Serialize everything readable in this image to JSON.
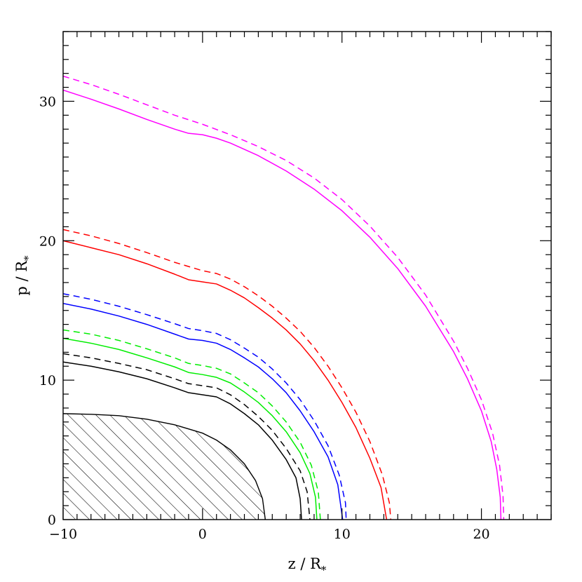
{
  "chart_data": {
    "type": "line",
    "title": "",
    "xlabel": {
      "main": "z / R",
      "sub": "*"
    },
    "ylabel": {
      "main": "p / R",
      "sub": "*"
    },
    "xlim": [
      -10,
      25
    ],
    "ylim": [
      0,
      35
    ],
    "xticks": [
      -10,
      0,
      10,
      20
    ],
    "yticks": [
      0,
      10,
      20,
      30
    ],
    "xtick_labels": [
      "−10",
      "0",
      "10",
      "20"
    ],
    "ytick_labels": [
      "0",
      "10",
      "20",
      "30"
    ],
    "x_minor_step": 1,
    "y_minor_step": 1,
    "grid": false,
    "legend": "none",
    "hatched_region": {
      "name": "stellar-core-region",
      "color": "#000000",
      "points": [
        [
          -10,
          7.6
        ],
        [
          -8,
          7.55
        ],
        [
          -6,
          7.45
        ],
        [
          -4,
          7.2
        ],
        [
          -2,
          6.8
        ],
        [
          0,
          6.2
        ],
        [
          1,
          5.7
        ],
        [
          2,
          5.0
        ],
        [
          3,
          4.0
        ],
        [
          3.8,
          2.8
        ],
        [
          4.3,
          1.5
        ],
        [
          4.5,
          0
        ]
      ]
    },
    "series": [
      {
        "color": "#000000",
        "dashed": false,
        "points": [
          [
            -10,
            11.3
          ],
          [
            -8,
            11.0
          ],
          [
            -6,
            10.6
          ],
          [
            -4,
            10.1
          ],
          [
            -2,
            9.45
          ],
          [
            -1,
            9.1
          ],
          [
            0,
            8.95
          ],
          [
            1,
            8.8
          ],
          [
            2,
            8.3
          ],
          [
            3,
            7.6
          ],
          [
            4,
            6.8
          ],
          [
            5,
            5.7
          ],
          [
            6,
            4.3
          ],
          [
            6.7,
            3.0
          ],
          [
            7.0,
            1.5
          ],
          [
            7.1,
            0
          ]
        ]
      },
      {
        "color": "#000000",
        "dashed": true,
        "points": [
          [
            -10,
            11.9
          ],
          [
            -8,
            11.6
          ],
          [
            -6,
            11.2
          ],
          [
            -4,
            10.75
          ],
          [
            -2,
            10.1
          ],
          [
            -1,
            9.75
          ],
          [
            0,
            9.6
          ],
          [
            1,
            9.45
          ],
          [
            2,
            8.95
          ],
          [
            3,
            8.25
          ],
          [
            4,
            7.4
          ],
          [
            5,
            6.4
          ],
          [
            6,
            5.1
          ],
          [
            7,
            3.5
          ],
          [
            7.5,
            2.0
          ],
          [
            7.7,
            0
          ]
        ]
      },
      {
        "color": "#00ee00",
        "dashed": false,
        "points": [
          [
            -10,
            13.0
          ],
          [
            -8,
            12.65
          ],
          [
            -6,
            12.2
          ],
          [
            -4,
            11.6
          ],
          [
            -2,
            10.95
          ],
          [
            -1,
            10.55
          ],
          [
            0,
            10.4
          ],
          [
            1,
            10.2
          ],
          [
            2,
            9.8
          ],
          [
            3,
            9.15
          ],
          [
            4,
            8.4
          ],
          [
            5,
            7.45
          ],
          [
            6,
            6.3
          ],
          [
            7,
            4.8
          ],
          [
            7.7,
            3.3
          ],
          [
            8.1,
            1.6
          ],
          [
            8.2,
            0
          ]
        ]
      },
      {
        "color": "#00ee00",
        "dashed": true,
        "points": [
          [
            -10,
            13.6
          ],
          [
            -8,
            13.3
          ],
          [
            -6,
            12.85
          ],
          [
            -4,
            12.25
          ],
          [
            -2,
            11.6
          ],
          [
            -1,
            11.2
          ],
          [
            0,
            11.05
          ],
          [
            1,
            10.85
          ],
          [
            2,
            10.45
          ],
          [
            3,
            9.8
          ],
          [
            4,
            9.1
          ],
          [
            5,
            8.15
          ],
          [
            6,
            7.0
          ],
          [
            7,
            5.55
          ],
          [
            7.8,
            3.9
          ],
          [
            8.3,
            2.0
          ],
          [
            8.45,
            0
          ]
        ]
      },
      {
        "color": "#0000ff",
        "dashed": false,
        "points": [
          [
            -10,
            15.5
          ],
          [
            -8,
            15.1
          ],
          [
            -6,
            14.6
          ],
          [
            -4,
            14.0
          ],
          [
            -2,
            13.3
          ],
          [
            -1,
            12.95
          ],
          [
            0,
            12.85
          ],
          [
            1,
            12.65
          ],
          [
            2,
            12.2
          ],
          [
            3,
            11.6
          ],
          [
            4,
            10.95
          ],
          [
            5,
            10.1
          ],
          [
            6,
            9.1
          ],
          [
            7,
            7.8
          ],
          [
            8,
            6.3
          ],
          [
            9,
            4.5
          ],
          [
            9.7,
            2.5
          ],
          [
            10.05,
            0
          ]
        ]
      },
      {
        "color": "#0000ff",
        "dashed": true,
        "points": [
          [
            -10,
            16.2
          ],
          [
            -8,
            15.8
          ],
          [
            -6,
            15.3
          ],
          [
            -4,
            14.7
          ],
          [
            -2,
            14.05
          ],
          [
            -1,
            13.7
          ],
          [
            0,
            13.55
          ],
          [
            1,
            13.35
          ],
          [
            2,
            12.9
          ],
          [
            3,
            12.3
          ],
          [
            4,
            11.65
          ],
          [
            5,
            10.8
          ],
          [
            6,
            9.8
          ],
          [
            7,
            8.6
          ],
          [
            8,
            7.1
          ],
          [
            9,
            5.3
          ],
          [
            9.8,
            3.2
          ],
          [
            10.25,
            1.2
          ],
          [
            10.3,
            0
          ]
        ]
      },
      {
        "color": "#ff0000",
        "dashed": false,
        "points": [
          [
            -10,
            20.0
          ],
          [
            -8,
            19.5
          ],
          [
            -6,
            19.0
          ],
          [
            -4,
            18.35
          ],
          [
            -2,
            17.6
          ],
          [
            -1,
            17.2
          ],
          [
            0,
            17.05
          ],
          [
            1,
            16.9
          ],
          [
            2,
            16.45
          ],
          [
            3,
            15.9
          ],
          [
            4,
            15.2
          ],
          [
            5,
            14.45
          ],
          [
            6,
            13.6
          ],
          [
            7,
            12.6
          ],
          [
            8,
            11.4
          ],
          [
            9,
            10.0
          ],
          [
            10,
            8.4
          ],
          [
            11,
            6.6
          ],
          [
            12,
            4.4
          ],
          [
            12.8,
            2.3
          ],
          [
            13.2,
            0
          ]
        ]
      },
      {
        "color": "#ff0000",
        "dashed": true,
        "points": [
          [
            -10,
            20.8
          ],
          [
            -8,
            20.35
          ],
          [
            -6,
            19.8
          ],
          [
            -4,
            19.15
          ],
          [
            -2,
            18.45
          ],
          [
            0,
            17.85
          ],
          [
            1,
            17.65
          ],
          [
            2,
            17.25
          ],
          [
            3,
            16.7
          ],
          [
            4,
            16.05
          ],
          [
            5,
            15.3
          ],
          [
            6,
            14.45
          ],
          [
            7,
            13.5
          ],
          [
            8,
            12.35
          ],
          [
            9,
            11.0
          ],
          [
            10,
            9.45
          ],
          [
            11,
            7.7
          ],
          [
            12,
            5.6
          ],
          [
            12.9,
            3.2
          ],
          [
            13.4,
            1.2
          ],
          [
            13.5,
            0
          ]
        ]
      },
      {
        "color": "#ff00ff",
        "dashed": false,
        "points": [
          [
            -10,
            30.8
          ],
          [
            -8,
            30.15
          ],
          [
            -6,
            29.45
          ],
          [
            -4,
            28.7
          ],
          [
            -2,
            28.0
          ],
          [
            -1,
            27.7
          ],
          [
            0,
            27.6
          ],
          [
            1,
            27.35
          ],
          [
            2,
            27.0
          ],
          [
            4,
            26.1
          ],
          [
            6,
            25.0
          ],
          [
            8,
            23.7
          ],
          [
            10,
            22.15
          ],
          [
            12,
            20.25
          ],
          [
            14,
            18.0
          ],
          [
            16,
            15.3
          ],
          [
            18,
            12.05
          ],
          [
            19,
            10.1
          ],
          [
            20,
            7.8
          ],
          [
            20.7,
            5.6
          ],
          [
            21.1,
            3.6
          ],
          [
            21.35,
            1.6
          ],
          [
            21.4,
            0
          ]
        ]
      },
      {
        "color": "#ff00ff",
        "dashed": true,
        "points": [
          [
            -10,
            31.8
          ],
          [
            -8,
            31.2
          ],
          [
            -6,
            30.5
          ],
          [
            -4,
            29.75
          ],
          [
            -2,
            29.0
          ],
          [
            0,
            28.35
          ],
          [
            2,
            27.6
          ],
          [
            4,
            26.75
          ],
          [
            6,
            25.75
          ],
          [
            8,
            24.5
          ],
          [
            10,
            22.95
          ],
          [
            12,
            21.05
          ],
          [
            14,
            18.8
          ],
          [
            16,
            16.1
          ],
          [
            18,
            12.8
          ],
          [
            19,
            10.85
          ],
          [
            20,
            8.6
          ],
          [
            20.8,
            6.2
          ],
          [
            21.3,
            3.9
          ],
          [
            21.55,
            1.7
          ],
          [
            21.6,
            0
          ]
        ]
      }
    ]
  }
}
